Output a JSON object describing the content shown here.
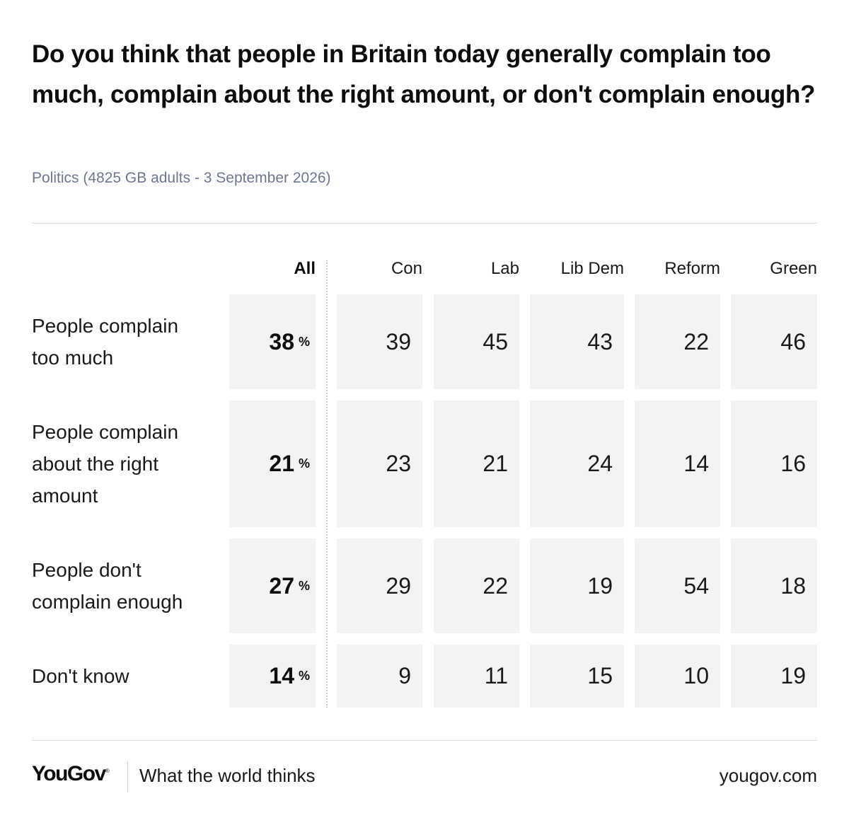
{
  "chart_data": {
    "type": "table",
    "title": "Do you think that people in Britain today generally complain too much, complain about the right amount, or don't complain enough?",
    "subtitle": "Politics (4825 GB adults - 3 September 2026)",
    "columns": [
      "All",
      "Con",
      "Lab",
      "Lib Dem",
      "Reform",
      "Green"
    ],
    "unit": "%",
    "rows": [
      {
        "label": "People complain too much",
        "values": [
          38,
          39,
          45,
          43,
          22,
          46
        ]
      },
      {
        "label": "People complain about the right amount",
        "values": [
          21,
          23,
          21,
          24,
          14,
          16
        ]
      },
      {
        "label": "People don't complain enough",
        "values": [
          27,
          29,
          22,
          19,
          54,
          18
        ]
      },
      {
        "label": "Don't know",
        "values": [
          14,
          9,
          11,
          15,
          10,
          19
        ]
      }
    ]
  },
  "footer": {
    "logo": "YouGov",
    "tagline": "What the world thinks",
    "site": "yougov.com"
  }
}
